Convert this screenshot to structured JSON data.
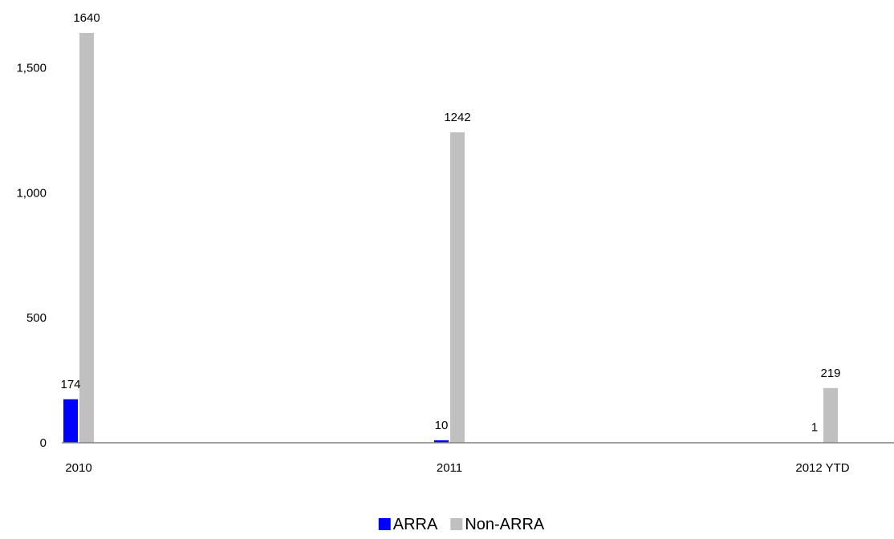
{
  "chart_data": {
    "type": "bar",
    "title": "",
    "xlabel": "",
    "ylabel": "",
    "categories": [
      "2010",
      "2011",
      "2012 YTD"
    ],
    "series": [
      {
        "name": "ARRA",
        "color": "#0000ff",
        "values": [
          174,
          10,
          1
        ]
      },
      {
        "name": "Non-ARRA",
        "color": "#c0c0c0",
        "values": [
          1640,
          1242,
          219
        ]
      }
    ],
    "data_labels": [
      [
        "174",
        "10",
        "1"
      ],
      [
        "1640",
        "1242",
        "219"
      ]
    ],
    "ylim": [
      0,
      1640
    ],
    "yticks": [
      0,
      500,
      1000,
      1500
    ],
    "ytick_labels": [
      "0",
      "500",
      "1,000",
      "1,500"
    ],
    "grid": false,
    "legend": {
      "placement": "bottom-center"
    }
  }
}
